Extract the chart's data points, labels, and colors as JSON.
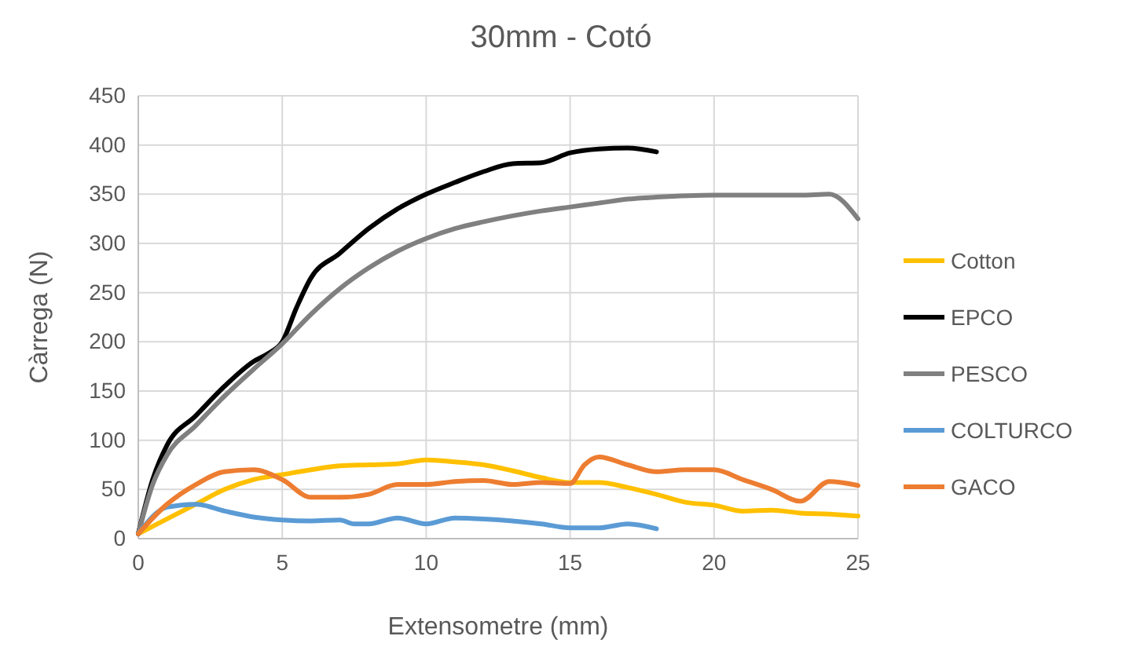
{
  "chart_data": {
    "type": "line",
    "title": "30mm - Cotó",
    "xlabel": "Extensometre (mm)",
    "ylabel": "Càrrega (N)",
    "xlim": [
      0,
      25
    ],
    "xticks": [
      0,
      5,
      10,
      15,
      20,
      25
    ],
    "ylim": [
      0,
      450
    ],
    "yticks": [
      0,
      50,
      100,
      150,
      200,
      250,
      300,
      350,
      400,
      450
    ],
    "grid": true,
    "legend": "right",
    "marker": "none",
    "line_style": "solid",
    "series": [
      {
        "name": "Cotton",
        "color": "#ffc000",
        "x": [
          0,
          1,
          2,
          3,
          4,
          5,
          6,
          7,
          8,
          9,
          10,
          11,
          12,
          13,
          14,
          15,
          16,
          17,
          18,
          19,
          20,
          21,
          22,
          23,
          24,
          25
        ],
        "values": [
          5,
          20,
          35,
          50,
          60,
          65,
          70,
          74,
          75,
          76,
          80,
          78,
          75,
          69,
          62,
          57,
          57,
          52,
          45,
          37,
          34,
          28,
          29,
          26,
          25,
          23
        ]
      },
      {
        "name": "EPCO",
        "color": "#000000",
        "x": [
          0,
          0.5,
          1,
          2,
          3,
          4,
          4.5,
          5,
          5.5,
          6,
          7,
          8,
          9,
          10,
          11,
          12,
          13,
          14,
          15,
          16,
          17,
          18
        ],
        "values": [
          5,
          60,
          95,
          125,
          155,
          180,
          188,
          200,
          235,
          265,
          290,
          315,
          335,
          350,
          362,
          373,
          381,
          382,
          392,
          396,
          397,
          393
        ]
      },
      {
        "name": "PESCO",
        "color": "#808080",
        "x": [
          0,
          0.5,
          1,
          2,
          3,
          4,
          5,
          6,
          7,
          8,
          9,
          10,
          11,
          12,
          13,
          14,
          15,
          16,
          17,
          18,
          20,
          22,
          23,
          24,
          25
        ],
        "values": [
          5,
          55,
          85,
          115,
          145,
          172,
          198,
          228,
          254,
          275,
          292,
          305,
          315,
          322,
          328,
          333,
          337,
          341,
          345,
          347,
          349,
          349,
          349,
          350,
          325
        ]
      },
      {
        "name": "COLTURCO",
        "color": "#5b9bd5",
        "x": [
          0,
          1,
          2,
          3,
          4,
          5,
          6,
          7,
          7.5,
          8,
          9,
          10,
          11,
          12,
          13,
          14,
          15,
          16,
          17,
          18
        ],
        "values": [
          5,
          32,
          35,
          28,
          22,
          19,
          18,
          19,
          15,
          15,
          21,
          15,
          21,
          20,
          18,
          15,
          11,
          11,
          15,
          10
        ]
      },
      {
        "name": "GACO",
        "color": "#ed7d31",
        "x": [
          0,
          1,
          2,
          3,
          4,
          5,
          6,
          7,
          8,
          9,
          10,
          11,
          12,
          13,
          14,
          15,
          15.5,
          16,
          17,
          18,
          19,
          20,
          21,
          22,
          23,
          24,
          25
        ],
        "values": [
          5,
          35,
          55,
          68,
          70,
          60,
          42,
          42,
          45,
          55,
          55,
          58,
          59,
          55,
          57,
          56,
          75,
          83,
          75,
          68,
          70,
          70,
          60,
          50,
          38,
          58,
          54
        ]
      }
    ]
  }
}
